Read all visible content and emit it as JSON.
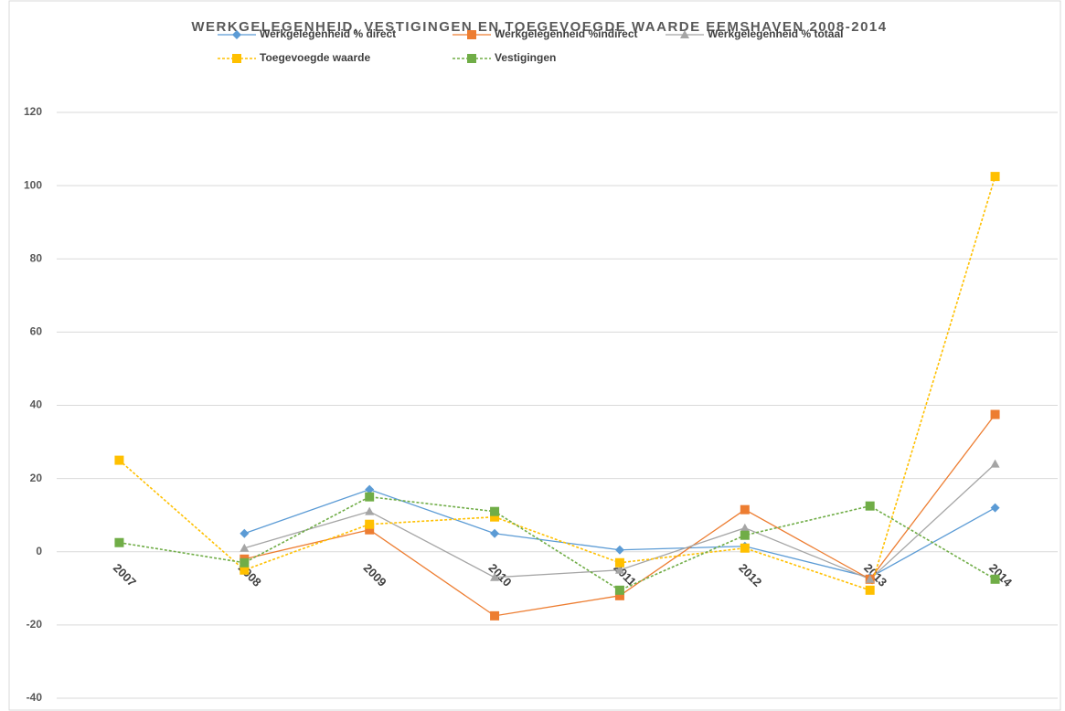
{
  "chart_data": {
    "type": "line",
    "title": "WERKGELEGENHEID, VESTIGINGEN EN TOEGEVOEGDE WAARDE EEMSHAVEN 2008-2014",
    "categories": [
      "2007",
      "2008",
      "2009",
      "2010",
      "2011",
      "2012",
      "2013",
      "2014"
    ],
    "series": [
      {
        "name": "Werkgelegenheid % direct",
        "color": "#5b9bd5",
        "marker": "diamond",
        "dashed": false,
        "values": [
          null,
          5,
          17,
          5,
          0.5,
          1.5,
          -7,
          12
        ]
      },
      {
        "name": "Werkgelegenheid %indirect",
        "color": "#ed7d31",
        "marker": "square",
        "dashed": false,
        "values": [
          null,
          -2,
          6,
          -17.5,
          -12,
          11.5,
          -7.5,
          37.5
        ]
      },
      {
        "name": "Werkgelegenheid % totaal",
        "color": "#a5a5a5",
        "marker": "triangle",
        "dashed": false,
        "values": [
          null,
          1,
          11,
          -7,
          -5,
          6.5,
          -7.5,
          24
        ]
      },
      {
        "name": "Toegevoegde waarde",
        "color": "#ffc000",
        "marker": "square",
        "dashed": true,
        "values": [
          25,
          -5,
          7.5,
          9.5,
          -3,
          1,
          -10.5,
          102.5
        ]
      },
      {
        "name": "Vestigingen",
        "color": "#70ad47",
        "marker": "square",
        "dashed": true,
        "values": [
          2.5,
          -3,
          15,
          11,
          -10.5,
          4.5,
          12.5,
          -7.5
        ]
      }
    ],
    "ylim": [
      -40,
      120
    ],
    "yticks": [
      -40,
      -20,
      0,
      20,
      40,
      60,
      80,
      100,
      120
    ],
    "grid": true,
    "legend": "top"
  }
}
